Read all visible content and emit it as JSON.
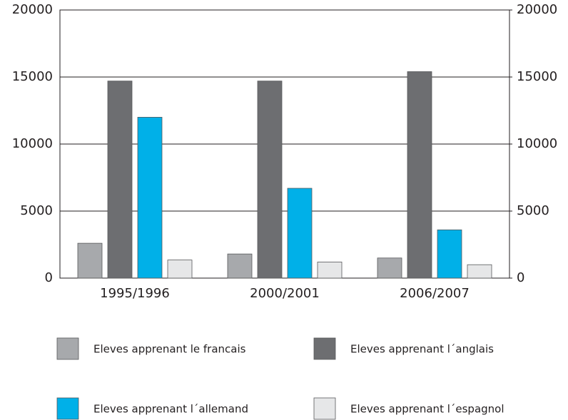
{
  "chart_data": {
    "type": "bar",
    "categories": [
      "1995/1996",
      "2000/2001",
      "2006/2007"
    ],
    "series": [
      {
        "name": "Eleves apprenant le francais",
        "color": "#a7a9ac",
        "values": [
          2600,
          1800,
          1500
        ]
      },
      {
        "name": "Eleves apprenant l´anglais",
        "color": "#6d6e71",
        "values": [
          14700,
          14700,
          15400
        ]
      },
      {
        "name": "Eleves apprenant l´allemand",
        "color": "#00b0e8",
        "values": [
          12000,
          6700,
          3600
        ]
      },
      {
        "name": "Eleves apprenant l´espagnol",
        "color": "#e6e7e8",
        "values": [
          1350,
          1200,
          1000
        ]
      }
    ],
    "ylim": [
      0,
      20000
    ],
    "yticks": [
      0,
      5000,
      10000,
      15000,
      20000
    ],
    "y2lim": [
      0,
      20000
    ],
    "y2ticks": [
      0,
      5000,
      10000,
      15000,
      20000
    ],
    "grid": true
  }
}
